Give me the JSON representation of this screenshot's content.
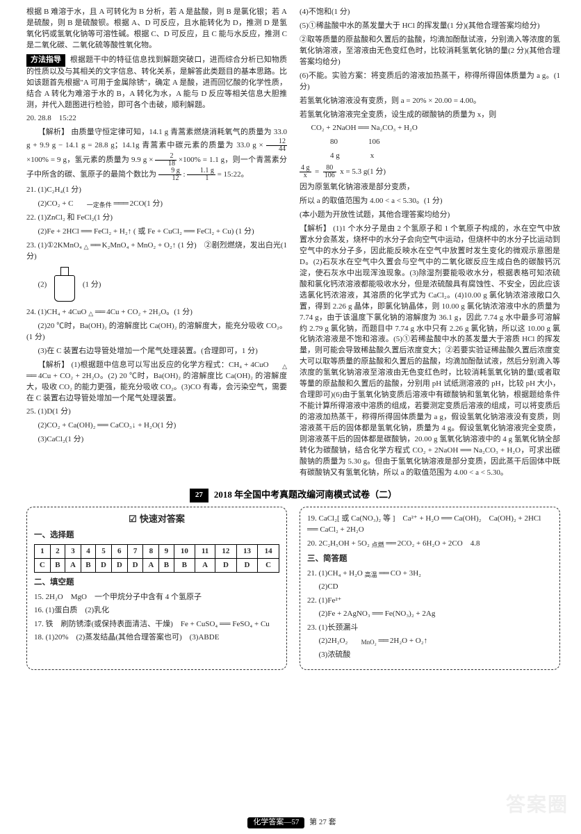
{
  "left": {
    "para1": "根据 B 难溶于水，且 A 可转化为 B 分析，若 A 是盐酸，则 B 是氯化银；若 A 是硫酸，则 B 是硫酸钡。根据 A、D 可反应，且水能转化为 D，推测 D 是氢氧化钙或氢氧化钠等可溶性碱。根据 C、D 可反应，且 C 能与水反应，推测 C 是二氧化碳、二氧化硫等酸性氧化物。",
    "method_label": "方法指导",
    "method_text": "根据题干中的特征信息找到解题突破口，进而综合分析已知物质的性质以及与其相关的文字信息、转化关系，是解答此类题目的基本思路。比如该题首先根据\"A 可用于金属除锈\"，确定 A 是酸，进而回忆酸的化学性质，结合 A 转化为难溶于水的 B，A 转化为水，A 能与 D 反应等相关信息大胆推测，并代入题图进行检验，即可各个击破，顺利解题。",
    "q20_head": "20. 28.8　15:22",
    "q20_ana_label": "【解析】",
    "q20_ana_1": "由质量守恒定律可知，14.1 g 青蒿素燃烧消耗氧气的质量为 33.0 g + 9.9 g − 14.1 g = 28.8 g；14.1g 青蒿素中碳元素的质量为 33.0 g ×",
    "q20_frac1_n": "12",
    "q20_frac1_d": "44",
    "q20_ana_2": "×100% = 9 g，氢元素的质量为 9.9 g ×",
    "q20_frac2_n": "2",
    "q20_frac2_d": "18",
    "q20_ana_3": "×100% = 1.1 g，则一个青蒿素分子中所含的碳、氢原子的最简个数比为",
    "q20_frac3a_n": "9 g",
    "q20_frac3a_d": "12",
    "q20_frac3b_n": "1.1 g",
    "q20_frac3b_d": "1",
    "q20_ana_4": "= 15:22。",
    "q21_1": "21. (1)C₂H₄(1 分)",
    "q21_2_pre": "(2)CO₂ + C",
    "q21_2_cond": "一定条件",
    "q21_2_post": "2CO(1 分)",
    "q22_1": "22. (1)ZnCl₂ 和 FeCl₂(1 分)",
    "q22_2": "(2)Fe + 2HCl ══ FeCl₂ + H₂↑ ( 或 Fe + CuCl₂ ══ FeCl₂ + Cu) (1 分)",
    "q23_1_pre": "23. (1)①2KMnO₄",
    "q23_1_cond": "△",
    "q23_1_mid": "K₂MnO₄ + MnO₂ + O₂↑ (1 分)　②剧烈燃烧，发出白光(1 分)",
    "q23_2": "(2)",
    "q23_2_score": "(1 分)",
    "q24_1_pre": "24. (1)CH₄ + 4CuO",
    "q24_1_cond": "△",
    "q24_1_post": "4Cu + CO₂ + 2H₂O。(1 分)",
    "q24_2": "(2)20 ℃时，Ba(OH)₂ 的溶解度比 Ca(OH)₂ 的溶解度大，能充分吸收 CO₂。(1 分)",
    "q24_3": "(3)在 C 装置右边导管处增加一个尾气处理装置。(合理即可，1 分)",
    "q24_ana_label": "【解析】",
    "q24_ana_1_pre": "(1)根据题中信息可以写出反应的化学方程式：CH₄ + 4CuO",
    "q24_ana_1_cond": "△",
    "q24_ana_1_post": "4Cu + CO₂ + 2H₂O。(2) 20 ℃时，Ba(OH)₂ 的溶解度比 Ca(OH)₂ 的溶解度大，吸收 CO₂ 的能力更强，能充分吸收 CO₂。(3)CO 有毒，会污染空气，需要在 C 装置右边导管处增加一个尾气处理装置。",
    "q25_1": "25. (1)D(1 分)",
    "q25_2": "(2)CO₂ + Ca(OH)₂ ══ CaCO₃↓ + H₂O(1 分)",
    "q25_3": "(3)CaCl₂(1 分)"
  },
  "right": {
    "q4": "(4)不饱和(1 分)",
    "q5": "(5)①稀盐酸中水的蒸发量大于 HCl 的挥发量(1 分)(其他合理答案均给分)",
    "q5_2": "②取等质量的原盐酸和久置后的盐酸，均滴加酚酞试液，分别滴入等浓度的氢氧化钠溶液，至溶液由无色变红色时，比较消耗氢氧化钠的量(2 分)(其他合理答案均给分)",
    "q6_1": "(6)不能。实验方案：将变质后的溶液加热蒸干，称得所得固体质量为 a g。(1 分)",
    "q6_2": "若氢氧化钠溶液没有变质，则 a = 20% × 20.00 = 4.00。",
    "q6_3": "若氢氧化钠溶液完全变质，设生成的碳酸钠的质量为 x，则",
    "q6_eq": "CO₂ + 2NaOH ══ Na₂CO₃ + H₂O",
    "q6_ratio1": "　　　　80　　　　106",
    "q6_ratio2": "　　　　4 g　　　　x",
    "q6_frac1_n": "4 g",
    "q6_frac1_d": "x",
    "q6_frac2_n": "80",
    "q6_frac2_d": "106",
    "q6_frac_tail": "x = 5.3 g(1 分)",
    "q6_4": "因为原氢氧化钠溶液是部分变质，",
    "q6_5": "所以 a 的取值范围为 4.00 < a < 5.30。(1 分)",
    "q6_6": "(本小题为开放性试题，其他合理答案均给分)",
    "ana_label": "【解析】",
    "ana": "(1)1 个水分子是由 2 个氢原子和 1 个氧原子构成的，水在空气中放置水分会蒸发，烧杯中的水分子会向空气中运动，但烧杯中的水分子比运动到空气中的水分子多，因此能反映水在空气中放置时发生变化的微观示意图是 D。(2)石灰水在空气中久置会与空气中的二氧化碳反应生成白色的碳酸钙沉淀，使石灰水中出现浑浊现象。(3)除湿剂要能吸收水分，根据表格可知浓硫酸和氯化钙浓溶液都能吸收水分，但是浓硫酸具有腐蚀性、不安全，因此应该选氯化钙浓溶液，其溶质的化学式为 CaCl₂。(4)10.00 g 氯化钠浓溶液敞口久置，得到 2.26 g 晶体，即氯化钠晶体，则 10.00 g 氯化钠浓溶液中水的质量为 7.74 g，由于该温度下氯化钠的溶解度为 36.1 g，因此 7.74 g 水中最多可溶解约 2.79 g 氯化钠，而题目中 7.74 g 水中只有 2.26 g 氯化钠，所以这 10.00 g 氯化钠浓溶液是不饱和溶液。(5)①若稀盐酸中水的蒸发量大于溶质 HCl 的挥发量，则可能会导致稀盐酸久置后浓度变大；②若要实验证稀盐酸久置后浓度变大可以取等质量的原盐酸和久置后的盐酸，均滴加酚酞试液，然后分别滴入等浓度的氢氧化钠溶液至溶液由无色变红色时，比较消耗氢氧化钠的量(或者取等量的原盐酸和久置后的盐酸，分别用 pH 试纸测溶液的 pH，比较 pH 大小，合理即可)(6)由于氢氧化钠变质后溶液中有碳酸钠和氢氧化钠，根据题给条件不能计算所得溶液中溶质的组成，若要测定变质后溶液的组成，可以将变质后的溶液加热蒸干，称得所得固体质量为 a g，假设氢氧化钠溶液没有变质，则溶液蒸干后的固体都是氢氧化钠，质量为 4 g。假设氢氧化钠溶液完全变质，则溶液蒸干后的固体都是碳酸钠，20.00 g 氢氧化钠溶液中的 4 g 氢氧化钠全部转化为碳酸钠，结合化学方程式 CO₂ + 2NaOH ══ Na₂CO₃ + H₂O，可求出碳酸钠的质量为 5.30 g。但由于氢氧化钠溶液是部分变质，因此蒸干后固体中既有碳酸钠又有氢氧化钠，所以 a 的取值范围为 4.00 < a < 5.30。"
  },
  "banner": {
    "num": "27",
    "title": "2018 年全国中考真题改编河南模式试卷（二）"
  },
  "ak": {
    "title": "快速对答案",
    "check": "☑",
    "sec1": "一、选择题",
    "nums": [
      "1",
      "2",
      "3",
      "4",
      "5",
      "6",
      "7",
      "8",
      "9",
      "10",
      "11",
      "12",
      "13",
      "14"
    ],
    "ans": [
      "C",
      "B",
      "A",
      "B",
      "D",
      "D",
      "D",
      "A",
      "B",
      "B",
      "A",
      "D",
      "D",
      "C"
    ],
    "sec2": "二、填空题",
    "f15": "15. 2H₂O　MgO　一个甲烷分子中含有 4 个氢原子",
    "f16": "16. (1)蛋白质　(2)乳化",
    "f17": "17. 铁　刷防锈漆(或保持表面清洁、干燥)　Fe + CuSO₄ ══ FeSO₄ + Cu",
    "f18": "18. (1)20%　(2)蒸发结晶(其他合理答案也可)　(3)ABDE",
    "r19": "19. CaCl₂[ 或 Ca(NO₃)₂ 等 ]　Ca²⁺ + H₂O ══ Ca(OH)₂　Ca(OH)₂ + 2HCl ══ CaCl₂ + 2H₂O",
    "r20_pre": "20. 2C₂H₅OH + 5O₂",
    "r20_cond": "点燃",
    "r20_post": "2CO₂ + 6H₂O + 2CO　4.8",
    "sec3": "三、简答题",
    "r21_pre": "21. (1)CH₄ + H₂O",
    "r21_cond": "高温",
    "r21_post": "CO + 3H₂",
    "r21_2": "(2)CD",
    "r22_1": "22. (1)Fe²⁺",
    "r22_2": "(2)Fe + 2AgNO₃ ══ Fe(NO₃)₂ + 2Ag",
    "r23_1": "23. (1)长颈漏斗",
    "r23_2_pre": "(2)2H₂O₂",
    "r23_2_cond": "MnO₂",
    "r23_2_post": "2H₂O + O₂↑",
    "r23_3": "(3)浓硫酸"
  },
  "footer": {
    "left": "化学答案—57",
    "right": "第 27 套"
  },
  "watermark": "答案圈"
}
